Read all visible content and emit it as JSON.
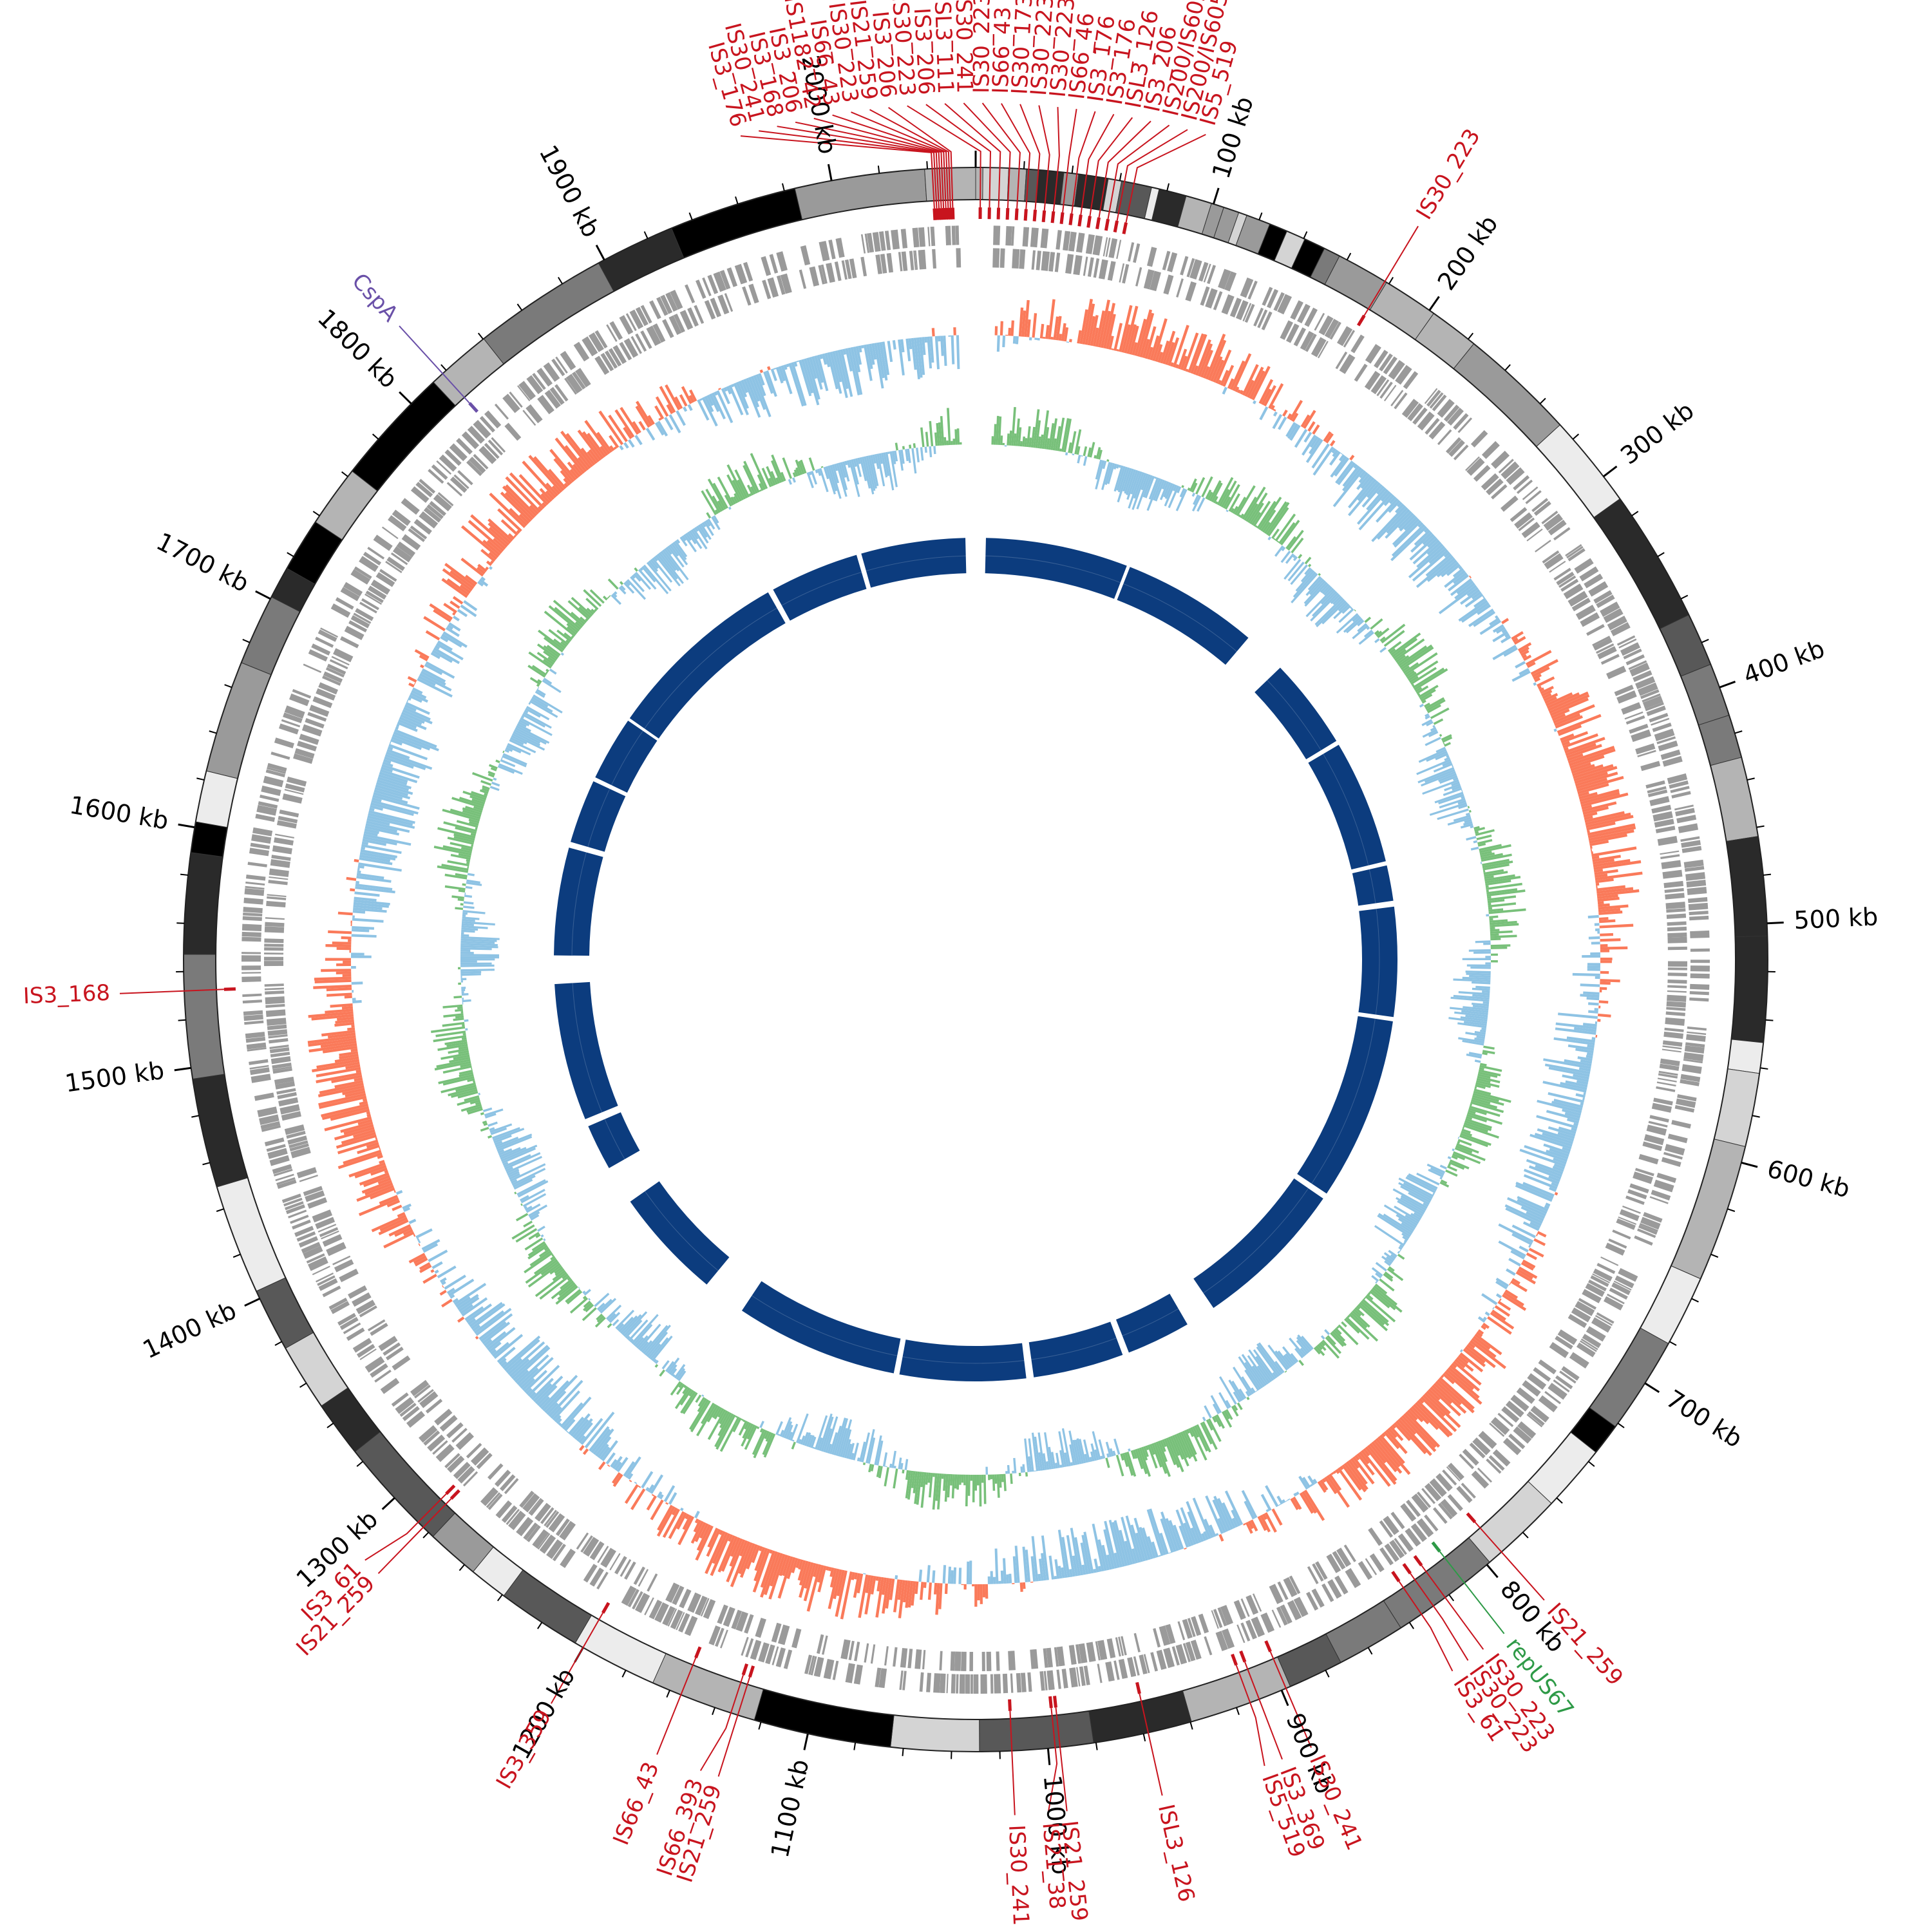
{
  "genome": {
    "length_kb": 2060,
    "tick_labels": [
      "100 kb",
      "200 kb",
      "300 kb",
      "400 kb",
      "500 kb",
      "600 kb",
      "700 kb",
      "800 kb",
      "900 kb",
      "1000 kb",
      "1100 kb",
      "1200 kb",
      "1300 kb",
      "1400 kb",
      "1500 kb",
      "1600 kb",
      "1700 kb",
      "1800 kb",
      "1900 kb",
      "2000 kb"
    ],
    "tick_positions_kb": [
      100,
      200,
      300,
      400,
      500,
      600,
      700,
      800,
      900,
      1000,
      1100,
      1200,
      1300,
      1400,
      1500,
      1600,
      1700,
      1800,
      1900,
      2000
    ]
  },
  "colors": {
    "is_element": "#c8141e",
    "rep_gene": "#2e9a47",
    "csp_gene": "#6a50a8",
    "gc_skew_positive": "#fa7a5a",
    "gc_skew_negative": "#8ec3e4",
    "gc_content_positive": "#78c07a",
    "gc_content_negative": "#8ec3e4",
    "homology_ring": "#0c3c7e",
    "gene_ring": "#9a9a9a"
  },
  "annotations": [
    {
      "label": "IS3_176",
      "kb": 2042,
      "color": "is"
    },
    {
      "label": "IS30_241",
      "kb": 2043,
      "color": "is"
    },
    {
      "label": "IS3_168",
      "kb": 2044,
      "color": "is"
    },
    {
      "label": "IS3_206",
      "kb": 2045,
      "color": "is"
    },
    {
      "label": "IS1182_42",
      "kb": 2046,
      "color": "is"
    },
    {
      "label": "IS66_43",
      "kb": 2047,
      "color": "is"
    },
    {
      "label": "IS30_223",
      "kb": 2048,
      "color": "is"
    },
    {
      "label": "IS21_259",
      "kb": 2049,
      "color": "is"
    },
    {
      "label": "IS3_206",
      "kb": 2050,
      "color": "is"
    },
    {
      "label": "IS30_223",
      "kb": 2,
      "color": "is"
    },
    {
      "label": "IS3_206",
      "kb": 6,
      "color": "is"
    },
    {
      "label": "ISL3_111",
      "kb": 10,
      "color": "is"
    },
    {
      "label": "IS30_241",
      "kb": 14,
      "color": "is"
    },
    {
      "label": "IS30_223",
      "kb": 18,
      "color": "is"
    },
    {
      "label": "IS66_43",
      "kb": 22,
      "color": "is"
    },
    {
      "label": "IS30_173",
      "kb": 26,
      "color": "is"
    },
    {
      "label": "IS30_223",
      "kb": 30,
      "color": "is"
    },
    {
      "label": "IS30_223",
      "kb": 34,
      "color": "is"
    },
    {
      "label": "IS66_46",
      "kb": 38,
      "color": "is"
    },
    {
      "label": "IS3_176",
      "kb": 42,
      "color": "is"
    },
    {
      "label": "IS3_176",
      "kb": 46,
      "color": "is"
    },
    {
      "label": "ISL3_126",
      "kb": 50,
      "color": "is"
    },
    {
      "label": "IS3_206",
      "kb": 54,
      "color": "is"
    },
    {
      "label": "IS200/IS605_96",
      "kb": 58,
      "color": "is"
    },
    {
      "label": "IS200/IS605_449",
      "kb": 62,
      "color": "is"
    },
    {
      "label": "IS5_519",
      "kb": 66,
      "color": "is"
    },
    {
      "label": "IS30_223",
      "kb": 178,
      "color": "is"
    },
    {
      "label": "IS21_259",
      "kb": 792,
      "color": "is"
    },
    {
      "label": "repUS67",
      "kb": 812,
      "color": "rep"
    },
    {
      "label": "IS30_223",
      "kb": 822,
      "color": "is"
    },
    {
      "label": "IS30_223",
      "kb": 828,
      "color": "is"
    },
    {
      "label": "IS3_61",
      "kb": 834,
      "color": "is"
    },
    {
      "label": "IS30_241",
      "kb": 898,
      "color": "is"
    },
    {
      "label": "IS3_369",
      "kb": 910,
      "color": "is"
    },
    {
      "label": "IS5_519",
      "kb": 914,
      "color": "is"
    },
    {
      "label": "ISL3_126",
      "kb": 958,
      "color": "is"
    },
    {
      "label": "IS21_259",
      "kb": 995,
      "color": "is"
    },
    {
      "label": "IS21_38",
      "kb": 997,
      "color": "is"
    },
    {
      "label": "IS30_241",
      "kb": 1015,
      "color": "is"
    },
    {
      "label": "IS21_259",
      "kb": 1130,
      "color": "is"
    },
    {
      "label": "IS66_393",
      "kb": 1133,
      "color": "is"
    },
    {
      "label": "IS66_43",
      "kb": 1155,
      "color": "is"
    },
    {
      "label": "IS3_359",
      "kb": 1200,
      "color": "is"
    },
    {
      "label": "IS21_259",
      "kb": 1283,
      "color": "is"
    },
    {
      "label": "IS3_61",
      "kb": 1286,
      "color": "is"
    },
    {
      "label": "IS3_168",
      "kb": 1532,
      "color": "is"
    },
    {
      "label": "CspA",
      "kb": 1818,
      "color": "csp"
    }
  ]
}
